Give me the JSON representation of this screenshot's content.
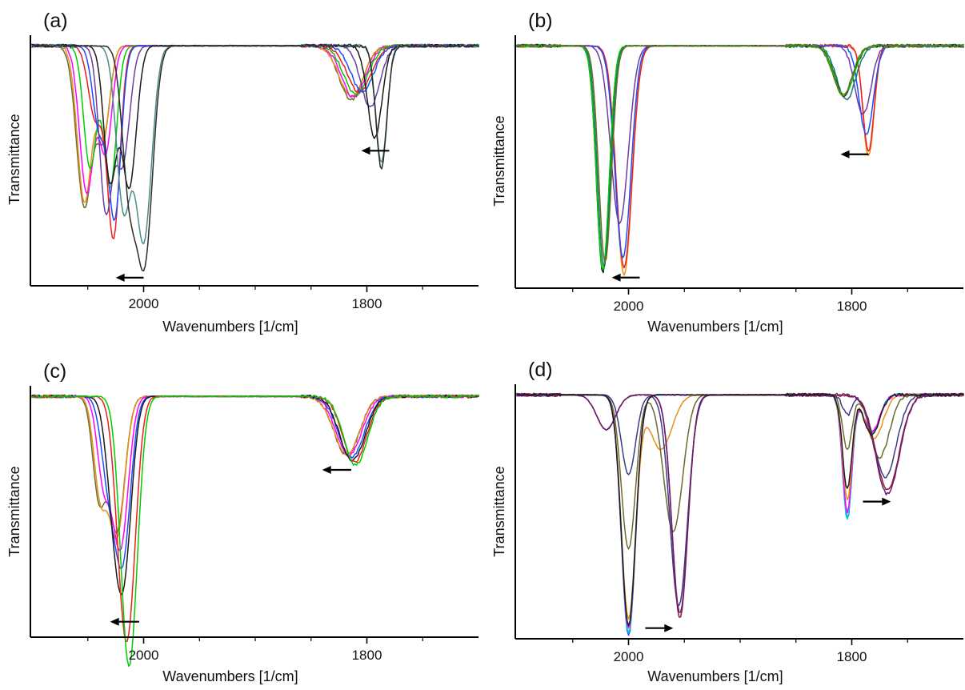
{
  "chart_data": [
    {
      "panel": "(a)",
      "type": "line",
      "xlabel": "Wavenumbers [1/cm]",
      "ylabel": "Transmittance",
      "xlim": [
        2100,
        1700
      ],
      "x_reversed": true,
      "x_ticks": [
        2000,
        1800
      ],
      "y_ticks": [],
      "grid": false,
      "ylim": [
        0,
        1
      ],
      "arrows": [
        {
          "from": 2000,
          "to": 2025,
          "y": 0.98
        },
        {
          "from": 1780,
          "to": 1805,
          "y": 0.46
        }
      ],
      "baseline": 0.03,
      "series": [
        {
          "color": "#6b6b2f",
          "bands": [
            [
              2053,
              10,
              0.66
            ],
            [
              2036,
              8,
              0.36
            ],
            [
              1814,
              15,
              0.22
            ]
          ]
        },
        {
          "color": "#e8901c",
          "bands": [
            [
              2053,
              9,
              0.64
            ],
            [
              2036,
              8,
              0.36
            ],
            [
              1814,
              15,
              0.21
            ]
          ]
        },
        {
          "color": "#ff00ff",
          "bands": [
            [
              2051,
              9,
              0.6
            ],
            [
              2034,
              8,
              0.43
            ],
            [
              1812,
              15,
              0.21
            ]
          ]
        },
        {
          "color": "#00cc00",
          "bands": [
            [
              2048,
              8,
              0.5
            ],
            [
              2030,
              8,
              0.58
            ],
            [
              1810,
              15,
              0.2
            ]
          ]
        },
        {
          "color": "#ee1c1c",
          "bands": [
            [
              2043,
              9,
              0.3
            ],
            [
              2027,
              8,
              0.78
            ],
            [
              1807,
              15,
              0.19
            ]
          ]
        },
        {
          "color": "#1c4cff",
          "bands": [
            [
              2040,
              8,
              0.33
            ],
            [
              2026,
              8,
              0.7
            ],
            [
              1804,
              14,
              0.19
            ]
          ]
        },
        {
          "color": "#6b3fa0",
          "bands": [
            [
              2034,
              8,
              0.66
            ],
            [
              2019,
              9,
              0.48
            ],
            [
              1797,
              12,
              0.25
            ]
          ]
        },
        {
          "color": "#1a1a1a",
          "bands": [
            [
              2030,
              8,
              0.55
            ],
            [
              2013,
              9,
              0.58
            ],
            [
              1793,
              9,
              0.38
            ]
          ]
        },
        {
          "color": "#4b8b8b",
          "bands": [
            [
              2018,
              9,
              0.66
            ],
            [
              2000,
              10,
              0.8
            ],
            [
              1787,
              7,
              0.48
            ]
          ]
        },
        {
          "color": "#2b2b2b",
          "bands": [
            [
              2013,
              9,
              0.56
            ],
            [
              1999,
              10,
              0.86
            ],
            [
              1787,
              7,
              0.5
            ]
          ]
        }
      ]
    },
    {
      "panel": "(b)",
      "type": "line",
      "xlabel": "Wavenumbers [1/cm]",
      "ylabel": "Transmittance",
      "xlim": [
        2100,
        1700
      ],
      "x_reversed": true,
      "x_ticks": [
        2000,
        1800
      ],
      "y_ticks": [],
      "grid": false,
      "ylim": [
        0,
        1
      ],
      "arrows": [
        {
          "from": 1785,
          "to": 1810,
          "y": 0.47
        },
        {
          "from": 1990,
          "to": 2015,
          "y": 0.97
        }
      ],
      "baseline": 0.03,
      "series": [
        {
          "color": "#e8901c",
          "bands": [
            [
              2004,
              10,
              0.93
            ],
            [
              1785,
              7,
              0.45
            ]
          ]
        },
        {
          "color": "#ee1c1c",
          "bands": [
            [
              2004,
              10,
              0.9
            ],
            [
              1785,
              7,
              0.43
            ]
          ]
        },
        {
          "color": "#1c4cff",
          "bands": [
            [
              2005,
              10,
              0.86
            ],
            [
              1787,
              9,
              0.36
            ]
          ]
        },
        {
          "color": "#6b3fa0",
          "bands": [
            [
              2008,
              11,
              0.72
            ],
            [
              1790,
              10,
              0.28
            ]
          ]
        },
        {
          "color": "#1a7a7a",
          "bands": [
            [
              2022,
              8,
              0.9
            ],
            [
              1805,
              12,
              0.22
            ]
          ]
        },
        {
          "color": "#1a1a1a",
          "bands": [
            [
              2023,
              8,
              0.92
            ],
            [
              1807,
              12,
              0.2
            ]
          ]
        },
        {
          "color": "#00cc00",
          "bands": [
            [
              2023,
              8,
              0.91
            ],
            [
              1807,
              12,
              0.2
            ]
          ]
        },
        {
          "color": "#6b6b2f",
          "bands": [
            [
              2021,
              8,
              0.88
            ],
            [
              1808,
              12,
              0.2
            ]
          ]
        }
      ]
    },
    {
      "panel": "(c)",
      "type": "line",
      "xlabel": "Wavenumbers [1/cm]",
      "ylabel": "Transmittance",
      "xlim": [
        2100,
        1700
      ],
      "x_reversed": true,
      "x_ticks": [
        2000,
        1800
      ],
      "y_ticks": [],
      "grid": false,
      "ylim": [
        0,
        1
      ],
      "arrows": [
        {
          "from": 2004,
          "to": 2030,
          "y": 0.95
        },
        {
          "from": 1814,
          "to": 1840,
          "y": 0.33
        }
      ],
      "baseline": 0.03,
      "series": [
        {
          "color": "#6b6b2f",
          "bands": [
            [
              2040,
              8,
              0.4
            ],
            [
              2024,
              10,
              0.55
            ],
            [
              1818,
              16,
              0.24
            ]
          ]
        },
        {
          "color": "#e8901c",
          "bands": [
            [
              2039,
              8,
              0.38
            ],
            [
              2024,
              10,
              0.57
            ],
            [
              1818,
              16,
              0.24
            ]
          ]
        },
        {
          "color": "#ff00ff",
          "bands": [
            [
              2036,
              8,
              0.33
            ],
            [
              2021,
              10,
              0.62
            ],
            [
              1816,
              16,
              0.24
            ]
          ]
        },
        {
          "color": "#1c4cff",
          "bands": [
            [
              2032,
              9,
              0.3
            ],
            [
              2019,
              10,
              0.66
            ],
            [
              1814,
              16,
              0.25
            ]
          ]
        },
        {
          "color": "#1a1a1a",
          "bands": [
            [
              2028,
              9,
              0.3
            ],
            [
              2018,
              10,
              0.7
            ],
            [
              1813,
              16,
              0.26
            ]
          ]
        },
        {
          "color": "#ee1c1c",
          "bands": [
            [
              2022,
              9,
              0.24
            ],
            [
              2014,
              10,
              0.88
            ],
            [
              1811,
              15,
              0.27
            ]
          ]
        },
        {
          "color": "#00cc00",
          "bands": [
            [
              2018,
              9,
              0.22
            ],
            [
              2012,
              10,
              0.95
            ],
            [
              1810,
              15,
              0.28
            ]
          ]
        }
      ]
    },
    {
      "panel": "(d)",
      "type": "line",
      "xlabel": "Wavenumbers [1/cm]",
      "ylabel": "Transmittance",
      "xlim": [
        2100,
        1700
      ],
      "x_reversed": true,
      "x_ticks": [
        2000,
        1800
      ],
      "y_ticks": [],
      "grid": false,
      "ylim": [
        0,
        1
      ],
      "arrows": [
        {
          "from": 1985,
          "to": 1960,
          "y": 0.97
        },
        {
          "from": 1790,
          "to": 1765,
          "y": 0.46
        }
      ],
      "baseline": 0.03,
      "series": [
        {
          "color": "#1c4cff",
          "bands": [
            [
              2000,
              9,
              0.97
            ],
            [
              1804,
              6,
              0.5
            ],
            [
              1782,
              10,
              0.15
            ]
          ]
        },
        {
          "color": "#00cccc",
          "bands": [
            [
              2000,
              9,
              0.96
            ],
            [
              1804,
              6,
              0.5
            ],
            [
              1782,
              10,
              0.15
            ]
          ]
        },
        {
          "color": "#ff00ff",
          "bands": [
            [
              2000,
              9,
              0.94
            ],
            [
              1804,
              6,
              0.47
            ],
            [
              1782,
              10,
              0.15
            ]
          ]
        },
        {
          "color": "#e8901c",
          "bands": [
            [
              2000,
              9,
              0.9
            ],
            [
              1971,
              14,
              0.22
            ],
            [
              1804,
              6,
              0.42
            ],
            [
              1780,
              11,
              0.18
            ]
          ]
        },
        {
          "color": "#6b6b2f",
          "bands": [
            [
              2000,
              9,
              0.62
            ],
            [
              1960,
              12,
              0.55
            ],
            [
              1804,
              6,
              0.22
            ],
            [
              1775,
              12,
              0.25
            ]
          ]
        },
        {
          "color": "#3b3b8b",
          "bands": [
            [
              2000,
              9,
              0.32
            ],
            [
              1955,
              11,
              0.85
            ],
            [
              1804,
              6,
              0.08
            ],
            [
              1770,
              14,
              0.33
            ]
          ]
        },
        {
          "color": "#8b1c3c",
          "bands": [
            [
              2020,
              12,
              0.14
            ],
            [
              1954,
              10,
              0.9
            ],
            [
              1768,
              15,
              0.38
            ]
          ]
        },
        {
          "color": "#6b1c6b",
          "bands": [
            [
              2020,
              12,
              0.14
            ],
            [
              1954,
              10,
              0.88
            ],
            [
              1768,
              15,
              0.4
            ]
          ]
        },
        {
          "color": "#1a1a1a",
          "bands": [
            [
              2000,
              9,
              0.93
            ],
            [
              1804,
              6,
              0.38
            ],
            [
              1782,
              10,
              0.16
            ]
          ]
        }
      ]
    }
  ]
}
